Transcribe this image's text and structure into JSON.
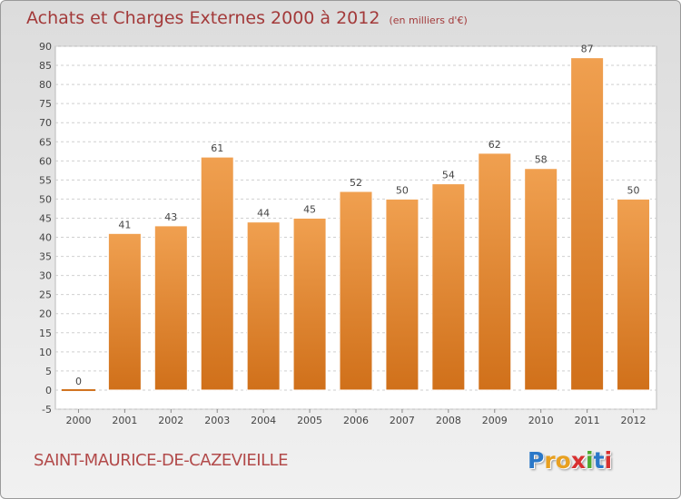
{
  "title": "Achats et Charges Externes 2000 à 2012",
  "unit": "(en milliers d'€)",
  "commune": "SAINT-MAURICE-DE-CAZEVIEILLE",
  "logo": {
    "letters": [
      "P",
      "r",
      "o",
      "x",
      "i",
      "t",
      "i"
    ],
    "colors": [
      "#2b78c8",
      "#e8a020",
      "#e8a020",
      "#d83030",
      "#4caa30",
      "#2b78c8",
      "#d83030"
    ]
  },
  "colors": {
    "bar": "#f0a050",
    "bar_dark": "#d0701a",
    "title": "#a33a3a"
  },
  "chart_data": {
    "type": "bar",
    "categories": [
      "2000",
      "2001",
      "2002",
      "2003",
      "2004",
      "2005",
      "2006",
      "2007",
      "2008",
      "2009",
      "2010",
      "2011",
      "2012"
    ],
    "values": [
      0,
      41,
      43,
      61,
      44,
      45,
      52,
      50,
      54,
      62,
      58,
      87,
      50
    ],
    "data_labels": [
      "0",
      "41",
      "43",
      "61",
      "44",
      "45",
      "52",
      "50",
      "54",
      "62",
      "58",
      "87",
      "50"
    ],
    "ylim": [
      -5,
      90
    ],
    "yticks": [
      "-5",
      "0",
      "5",
      "10",
      "15",
      "20",
      "25",
      "30",
      "35",
      "40",
      "45",
      "50",
      "55",
      "60",
      "65",
      "70",
      "75",
      "80",
      "85",
      "90"
    ],
    "grid": true,
    "xlabel": "",
    "ylabel": ""
  }
}
